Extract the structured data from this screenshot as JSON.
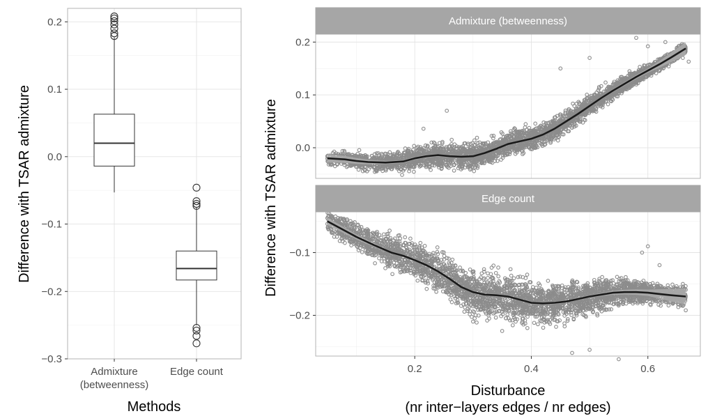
{
  "chart_data": [
    {
      "type": "box",
      "xlabel": "Methods",
      "ylabel": "Difference with TSAR admixture",
      "ylim": [
        -0.3,
        0.22
      ],
      "yticks": [
        -0.3,
        -0.2,
        -0.1,
        0.0,
        0.1,
        0.2
      ],
      "ytick_labels": [
        "−0.3",
        "−0.2",
        "−0.1",
        "0.0",
        "0.1",
        "0.2"
      ],
      "grid": true,
      "categories": [
        {
          "label_lines": [
            "Admixture",
            "(betweenness)"
          ]
        },
        {
          "label_lines": [
            "Edge count"
          ]
        }
      ],
      "boxes": [
        {
          "whisker_low": -0.053,
          "q1": -0.014,
          "median": 0.02,
          "q3": 0.063,
          "whisker_high": 0.177,
          "outliers": [
            0.179,
            0.183,
            0.19,
            0.196,
            0.201,
            0.205,
            0.208
          ]
        },
        {
          "whisker_low": -0.25,
          "q1": -0.183,
          "median": -0.166,
          "q3": -0.14,
          "whisker_high": -0.075,
          "outliers": [
            -0.046,
            -0.066,
            -0.07,
            -0.073,
            -0.254,
            -0.258,
            -0.266,
            -0.277
          ]
        }
      ]
    },
    {
      "type": "scatter",
      "xlabel_lines": [
        "Disturbance",
        "(nr inter−layers edges / nr edges)"
      ],
      "ylabel": "Difference with TSAR admixture",
      "xlim": [
        0.03,
        0.69
      ],
      "xticks": [
        0.2,
        0.4,
        0.6
      ],
      "xtick_labels": [
        "0.2",
        "0.4",
        "0.6"
      ],
      "grid": true,
      "panels": [
        {
          "title": "Admixture (betweenness)",
          "ylim": [
            -0.058,
            0.215
          ],
          "yticks": [
            0.0,
            0.1,
            0.2
          ],
          "ytick_labels": [
            "0.0",
            "0.1",
            "0.2"
          ],
          "trend": {
            "x": [
              0.05,
              0.08,
              0.1,
              0.12,
              0.15,
              0.18,
              0.2,
              0.22,
              0.24,
              0.26,
              0.28,
              0.3,
              0.32,
              0.34,
              0.36,
              0.38,
              0.4,
              0.42,
              0.44,
              0.46,
              0.48,
              0.5,
              0.52,
              0.54,
              0.56,
              0.58,
              0.6,
              0.62,
              0.64,
              0.665
            ],
            "y": [
              -0.02,
              -0.022,
              -0.025,
              -0.027,
              -0.028,
              -0.026,
              -0.02,
              -0.016,
              -0.014,
              -0.016,
              -0.017,
              -0.016,
              -0.01,
              -0.002,
              0.007,
              0.012,
              0.017,
              0.025,
              0.036,
              0.05,
              0.064,
              0.079,
              0.094,
              0.108,
              0.121,
              0.134,
              0.146,
              0.158,
              0.171,
              0.188
            ]
          },
          "band": {
            "x": [
              0.05,
              0.15,
              0.3,
              0.5,
              0.6,
              0.665
            ],
            "halfwidth": [
              0.008,
              0.003,
              0.002,
              0.002,
              0.004,
              0.012
            ]
          },
          "scatter": {
            "n": 3600,
            "x_range": [
              0.05,
              0.665
            ],
            "spread": [
              0.01,
              0.02
            ]
          },
          "extremes": {
            "x": [
              0.05,
              0.06,
              0.215,
              0.255,
              0.58,
              0.6,
              0.63,
              0.66,
              0.67,
              0.65,
              0.5,
              0.45
            ],
            "y": [
              -0.016,
              -0.022,
              0.036,
              0.07,
              0.208,
              0.192,
              0.2,
              0.17,
              0.163,
              0.185,
              0.17,
              0.15
            ]
          }
        },
        {
          "title": "Edge count",
          "ylim": [
            -0.265,
            -0.035
          ],
          "yticks": [
            -0.2,
            -0.1
          ],
          "ytick_labels": [
            "−0.2",
            "−0.1"
          ],
          "trend": {
            "x": [
              0.05,
              0.08,
              0.1,
              0.13,
              0.16,
              0.18,
              0.2,
              0.22,
              0.24,
              0.26,
              0.28,
              0.3,
              0.32,
              0.34,
              0.36,
              0.38,
              0.4,
              0.42,
              0.44,
              0.46,
              0.48,
              0.5,
              0.52,
              0.54,
              0.56,
              0.58,
              0.6,
              0.62,
              0.64,
              0.665
            ],
            "y": [
              -0.05,
              -0.065,
              -0.075,
              -0.088,
              -0.1,
              -0.105,
              -0.112,
              -0.12,
              -0.13,
              -0.142,
              -0.155,
              -0.163,
              -0.167,
              -0.168,
              -0.17,
              -0.175,
              -0.18,
              -0.181,
              -0.18,
              -0.178,
              -0.174,
              -0.17,
              -0.167,
              -0.164,
              -0.163,
              -0.163,
              -0.164,
              -0.166,
              -0.168,
              -0.17
            ]
          },
          "band": {
            "x": [
              0.05,
              0.15,
              0.3,
              0.5,
              0.6,
              0.665
            ],
            "halfwidth": [
              0.006,
              0.002,
              0.002,
              0.002,
              0.005,
              0.013
            ]
          },
          "scatter": {
            "n": 3600,
            "x_range": [
              0.05,
              0.665
            ],
            "spread": [
              0.014,
              0.03
            ]
          },
          "extremes": {
            "x": [
              0.05,
              0.06,
              0.59,
              0.6,
              0.62,
              0.66,
              0.665,
              0.47,
              0.5,
              0.55,
              0.35,
              0.3
            ],
            "y": [
              -0.045,
              -0.055,
              -0.1,
              -0.09,
              -0.12,
              -0.15,
              -0.192,
              -0.26,
              -0.255,
              -0.27,
              -0.225,
              -0.21
            ]
          }
        }
      ]
    }
  ]
}
